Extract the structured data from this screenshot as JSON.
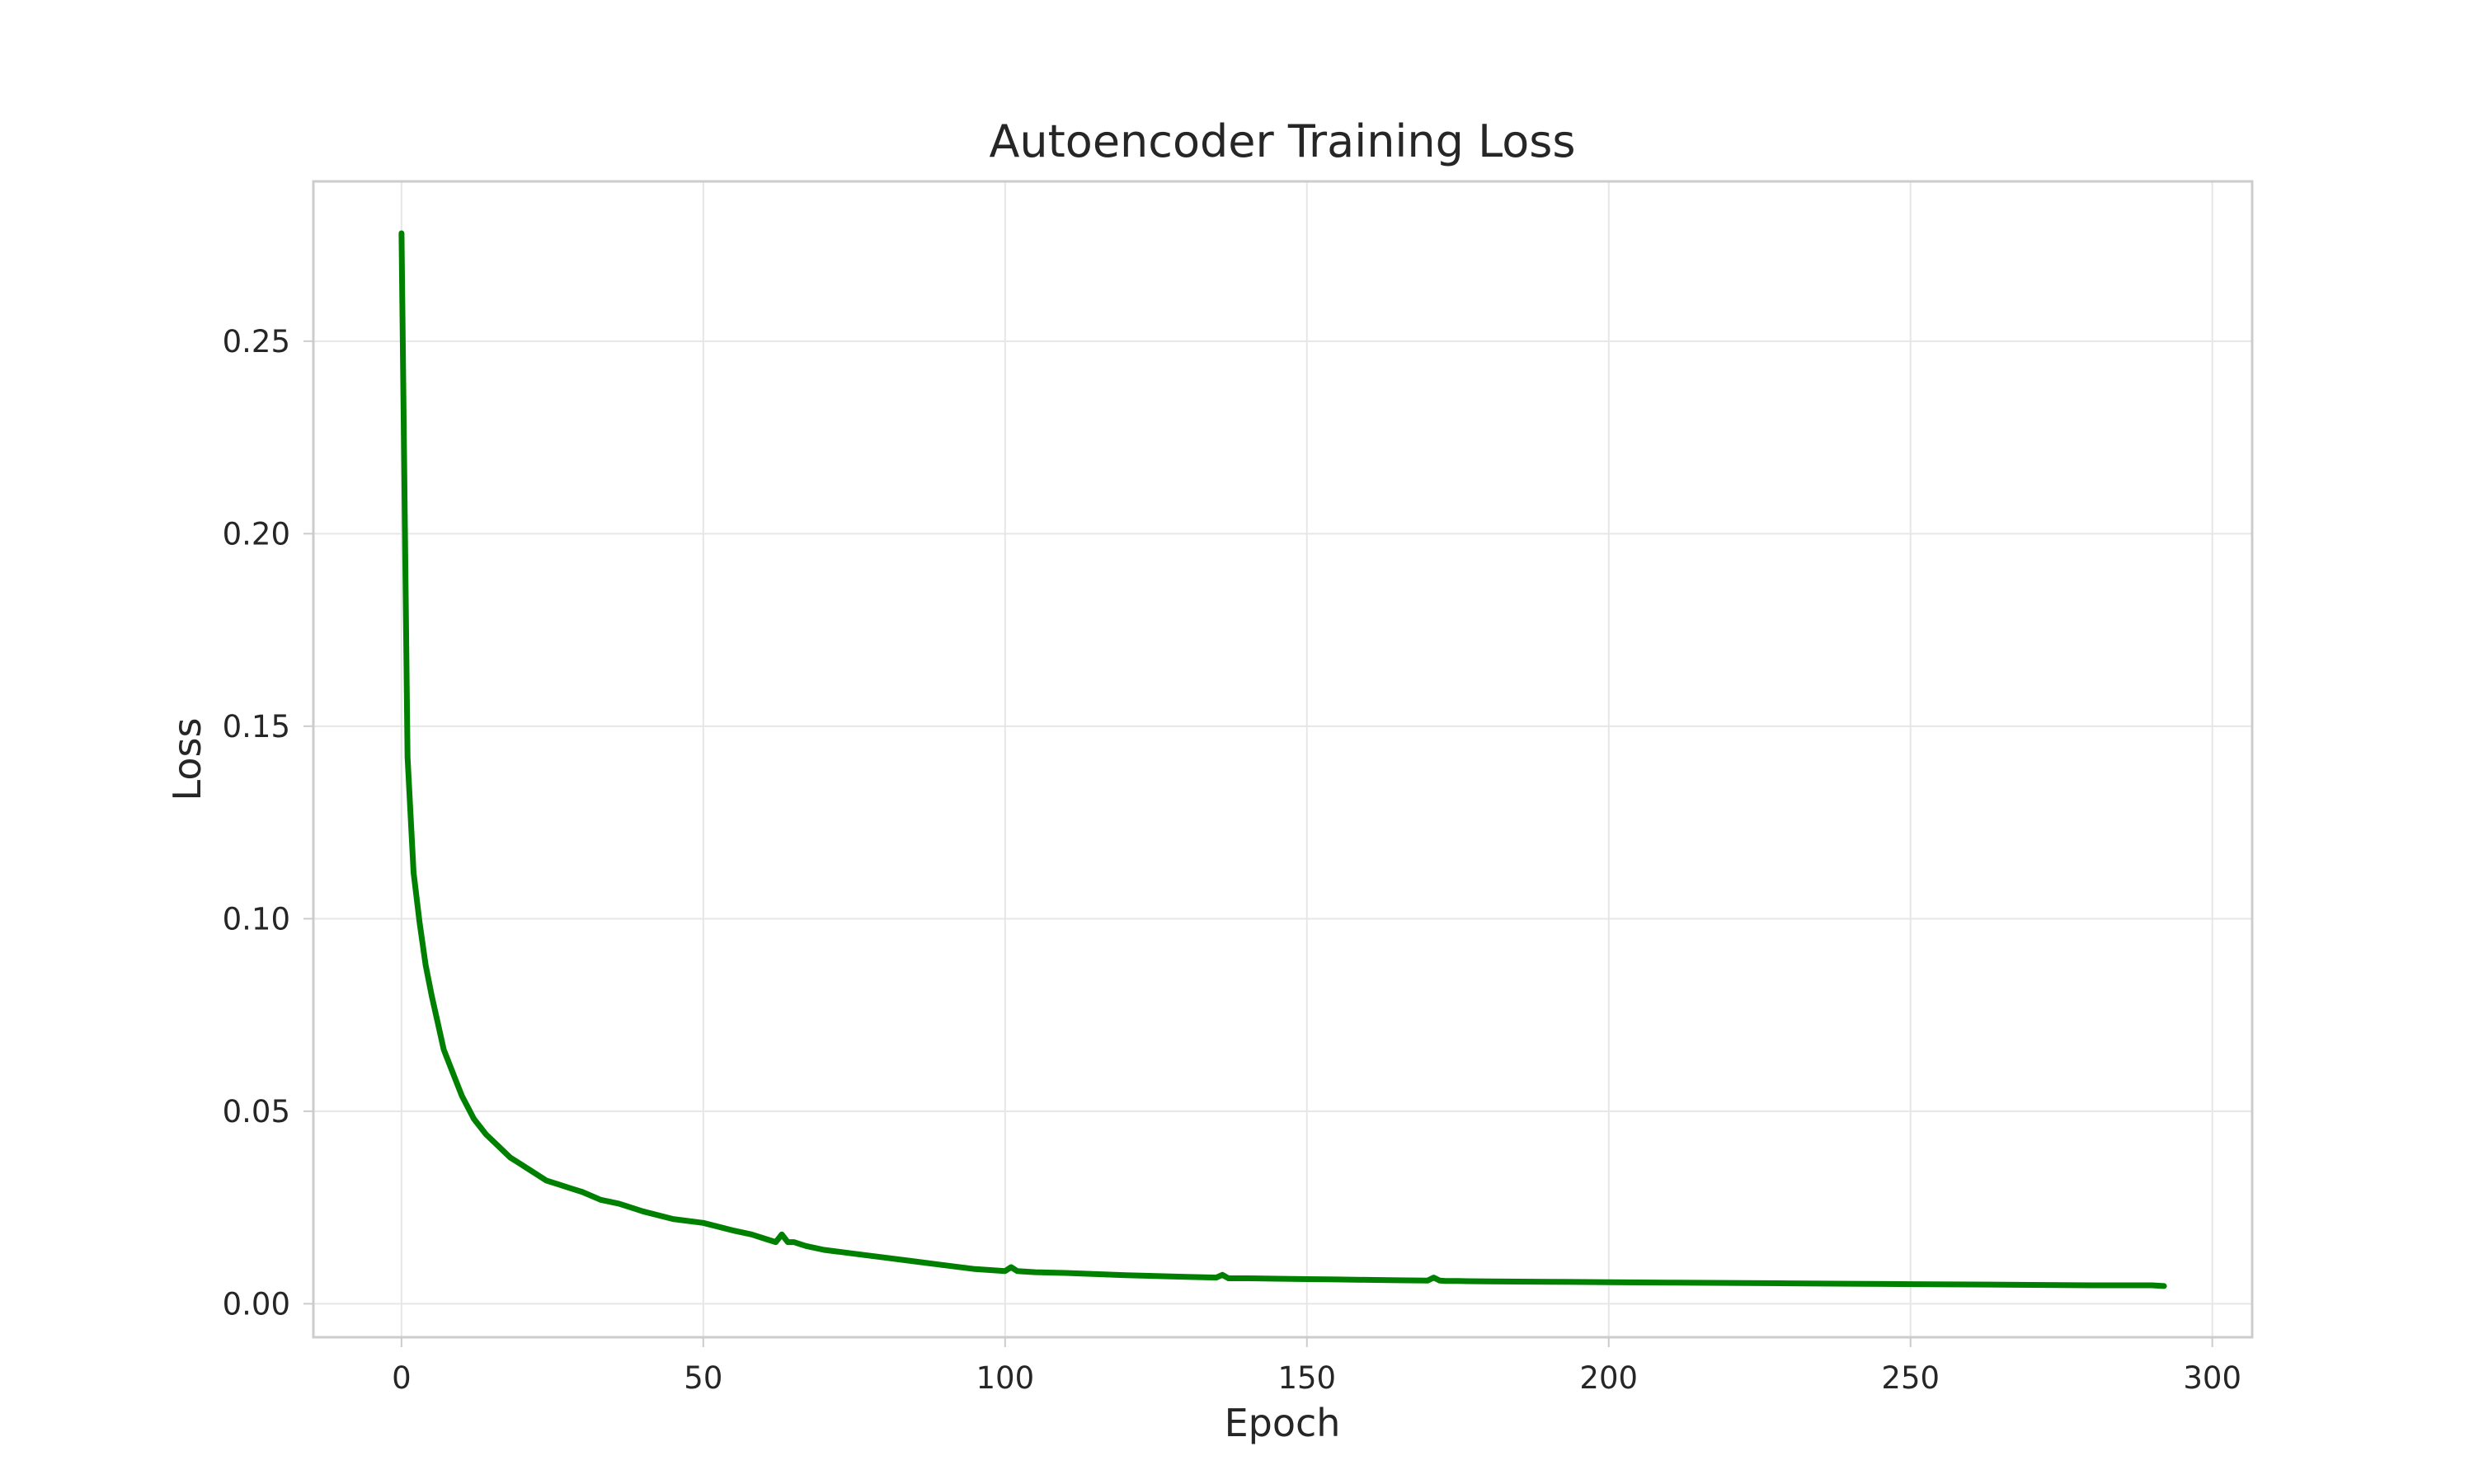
{
  "chart_data": {
    "type": "line",
    "title": "Autoencoder Training Loss",
    "xlabel": "Epoch",
    "ylabel": "Loss",
    "xlim": [
      -14.6,
      306.6
    ],
    "ylim": [
      -0.0087,
      0.2915
    ],
    "x_ticks": [
      0,
      50,
      100,
      150,
      200,
      250,
      300
    ],
    "x_tick_labels": [
      "0",
      "50",
      "100",
      "150",
      "200",
      "250",
      "300"
    ],
    "y_ticks": [
      0.0,
      0.05,
      0.1,
      0.15,
      0.2,
      0.25
    ],
    "y_tick_labels": [
      "0.00",
      "0.05",
      "0.10",
      "0.15",
      "0.20",
      "0.25"
    ],
    "grid": true,
    "legend": false,
    "series": [
      {
        "color": "#008000",
        "x": [
          0,
          1,
          2,
          3,
          4,
          5,
          6,
          7,
          8,
          9,
          10,
          12,
          14,
          16,
          18,
          20,
          22,
          24,
          26,
          28,
          30,
          33,
          36,
          40,
          45,
          50,
          55,
          58,
          60,
          62,
          63,
          64,
          65,
          67,
          70,
          75,
          80,
          85,
          90,
          95,
          100,
          101,
          102,
          105,
          110,
          115,
          120,
          125,
          130,
          135,
          136,
          137,
          140,
          145,
          150,
          155,
          160,
          165,
          170,
          171,
          172,
          173,
          175,
          180,
          190,
          200,
          210,
          220,
          230,
          240,
          250,
          260,
          270,
          280,
          290,
          292
        ],
        "y": [
          0.278,
          0.142,
          0.112,
          0.099,
          0.088,
          0.08,
          0.073,
          0.066,
          0.062,
          0.058,
          0.054,
          0.048,
          0.044,
          0.041,
          0.038,
          0.036,
          0.034,
          0.032,
          0.031,
          0.03,
          0.029,
          0.027,
          0.026,
          0.024,
          0.022,
          0.021,
          0.019,
          0.018,
          0.017,
          0.016,
          0.018,
          0.016,
          0.016,
          0.015,
          0.014,
          0.013,
          0.012,
          0.011,
          0.01,
          0.009,
          0.0085,
          0.0095,
          0.0085,
          0.0082,
          0.008,
          0.0077,
          0.0074,
          0.0072,
          0.007,
          0.0068,
          0.0075,
          0.0066,
          0.0066,
          0.0065,
          0.0064,
          0.0063,
          0.0062,
          0.0061,
          0.006,
          0.0068,
          0.006,
          0.0059,
          0.0059,
          0.0058,
          0.0057,
          0.0056,
          0.0055,
          0.0054,
          0.0053,
          0.0052,
          0.0051,
          0.005,
          0.0049,
          0.0048,
          0.0048,
          0.0046
        ]
      }
    ]
  }
}
